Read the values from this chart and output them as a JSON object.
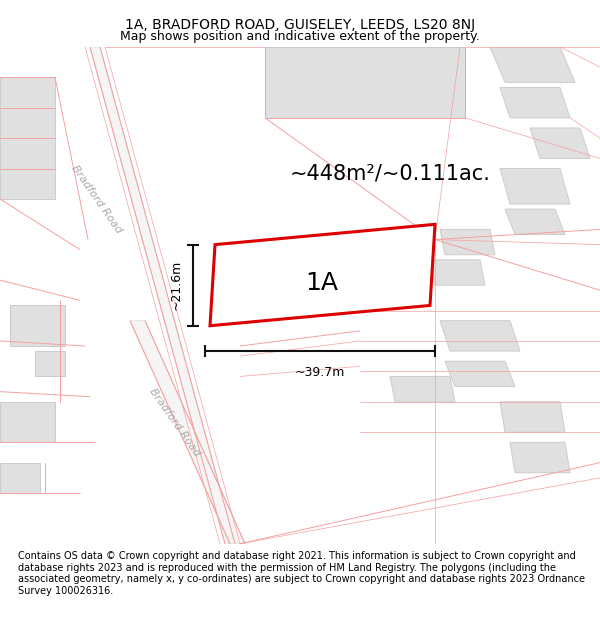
{
  "title_line1": "1A, BRADFORD ROAD, GUISELEY, LEEDS, LS20 8NJ",
  "title_line2": "Map shows position and indicative extent of the property.",
  "area_text": "~448m²/~0.111ac.",
  "label_1a": "1A",
  "dim_width": "~39.7m",
  "dim_height": "~21.6m",
  "road_label_top": "Bradford Road",
  "road_label_bottom": "Bradford Road",
  "footer_text": "Contains OS data © Crown copyright and database right 2021. This information is subject to Crown copyright and database rights 2023 and is reproduced with the permission of HM Land Registry. The polygons (including the associated geometry, namely x, y co-ordinates) are subject to Crown copyright and database rights 2023 Ordnance Survey 100026316.",
  "bg_color": "#ffffff",
  "map_bg": "#ffffff",
  "building_fill": "#e0e0e0",
  "building_edge": "#cccccc",
  "property_line_color": "#dd0000",
  "property_fill": "#ffffff",
  "road_pink": "#f5a0a0",
  "road_fill": "#f5f5f5",
  "road_edge": "#dddddd",
  "dim_line_color": "#111111",
  "footer_fontsize": 7.0,
  "title_fontsize": 10,
  "subtitle_fontsize": 9,
  "area_fontsize": 15,
  "label_fontsize": 18,
  "road_label_color": "#aaaaaa",
  "road_label_fontsize": 8
}
